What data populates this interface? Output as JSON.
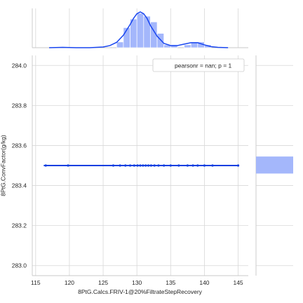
{
  "chart_data": {
    "type": "scatter",
    "xlabel": "8PtG.Calcs.FRIV-1@20%FiltrateStepRecovery",
    "ylabel": "8PtG.ConvFactor(g/kg)",
    "xlim": [
      114.5,
      146.5
    ],
    "ylim": [
      282.95,
      284.05
    ],
    "x_ticks": [
      115,
      120,
      125,
      130,
      135,
      140,
      145
    ],
    "x_tick_labels": [
      "115",
      "120",
      "125",
      "130",
      "135",
      "140",
      "145"
    ],
    "y_ticks": [
      283.0,
      283.2,
      283.4,
      283.6,
      283.8,
      284.0
    ],
    "y_tick_labels": [
      "283.0",
      "283.2",
      "283.4",
      "283.6",
      "283.8",
      "284.0"
    ],
    "grid": true,
    "legend_placement": "top-right",
    "annotation": "pearsonr = nan; p = 1",
    "scatter_y": 283.5,
    "scatter_x": [
      116.5,
      119.8,
      126.5,
      127.5,
      128.3,
      129.0,
      129.6,
      130.1,
      130.5,
      130.9,
      131.3,
      131.7,
      132.1,
      132.6,
      133.2,
      134.0,
      135.0,
      136.2,
      137.5,
      138.3,
      139.0,
      140.0,
      141.2,
      145.0
    ],
    "regression_line": {
      "x": [
        116.2,
        145.0
      ],
      "y": [
        283.5,
        283.5
      ]
    },
    "x_histogram": {
      "bin_edges": [
        127,
        128,
        129,
        130,
        131,
        132,
        133,
        134,
        135,
        136,
        137,
        138,
        139,
        140,
        141
      ],
      "counts": [
        2,
        7,
        10,
        12,
        11,
        9,
        5,
        1,
        1,
        0,
        1,
        2,
        2,
        1
      ]
    },
    "x_kde": {
      "x": [
        117,
        119,
        121,
        123,
        125,
        126,
        127,
        128,
        129,
        129.5,
        130,
        130.5,
        131,
        131.5,
        132,
        133,
        134,
        135,
        136,
        137,
        138,
        139,
        140,
        141,
        142,
        143.5
      ],
      "density": [
        0.0,
        0.01,
        0.0,
        0.0,
        0.02,
        0.06,
        0.15,
        0.35,
        0.65,
        0.82,
        0.95,
        1.0,
        0.95,
        0.82,
        0.62,
        0.32,
        0.12,
        0.06,
        0.06,
        0.1,
        0.14,
        0.14,
        0.08,
        0.03,
        0.01,
        0.0
      ]
    },
    "y_histogram": {
      "bin_range": [
        283.46,
        283.545
      ],
      "count_fraction": 1.0
    },
    "colors": {
      "line": "#0a3ee0",
      "points": "#0a3ee0",
      "hist_fill": "#a4b7fb",
      "kde": "#1946f0",
      "grid": "#d8d8d8",
      "text": "#262626"
    }
  }
}
